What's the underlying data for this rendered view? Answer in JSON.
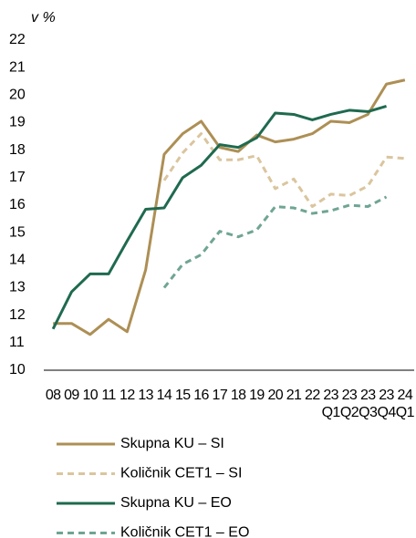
{
  "chart_data": {
    "type": "line",
    "y_label": "v %",
    "categories": [
      "08",
      "09",
      "10",
      "11",
      "12",
      "13",
      "14",
      "15",
      "16",
      "17",
      "18",
      "19",
      "20",
      "21",
      "22",
      "23\nQ1",
      "23\nQ2",
      "23\nQ3",
      "23\nQ4",
      "24\nQ1"
    ],
    "ylim": [
      10,
      22
    ],
    "yticks": [
      10,
      11,
      12,
      13,
      14,
      15,
      16,
      17,
      18,
      19,
      20,
      21,
      22
    ],
    "grid": false,
    "legend": "bottom",
    "series": [
      {
        "name": "Skupna KU – SI",
        "color": "#ad8f55",
        "dashed": false,
        "values": [
          11.7,
          11.7,
          11.3,
          11.85,
          11.4,
          13.65,
          17.85,
          18.6,
          19.05,
          18.1,
          17.95,
          18.55,
          18.3,
          18.4,
          18.6,
          19.05,
          19.0,
          19.3,
          20.4,
          20.55
        ]
      },
      {
        "name": "Količnik CET1 – SI",
        "color": "#dac59e",
        "dashed": true,
        "values": [
          null,
          null,
          null,
          null,
          null,
          null,
          16.9,
          17.9,
          18.6,
          17.65,
          17.65,
          17.8,
          16.6,
          16.95,
          15.95,
          16.4,
          16.35,
          16.7,
          17.75,
          17.7
        ]
      },
      {
        "name": "Skupna KU – EO",
        "color": "#1f6a4f",
        "dashed": false,
        "values": [
          11.5,
          12.85,
          13.5,
          13.5,
          14.7,
          15.85,
          15.9,
          17.0,
          17.45,
          18.2,
          18.1,
          18.45,
          19.35,
          19.3,
          19.1,
          19.3,
          19.45,
          19.4,
          19.6,
          null
        ]
      },
      {
        "name": "Količnik CET1 – EO",
        "color": "#6fa593",
        "dashed": true,
        "values": [
          null,
          null,
          null,
          null,
          null,
          null,
          13.0,
          13.85,
          14.2,
          15.05,
          14.85,
          15.1,
          15.95,
          15.9,
          15.7,
          15.8,
          16.0,
          15.95,
          16.3,
          null
        ]
      }
    ]
  }
}
